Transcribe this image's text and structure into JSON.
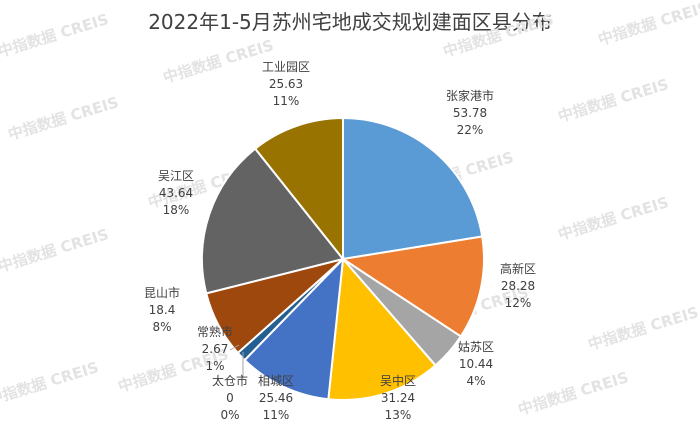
{
  "chart_data": {
    "type": "pie",
    "title": "2022年1-5月苏州宅地成交规划建面区县分布",
    "slices": [
      {
        "name": "张家港市",
        "value": 53.78,
        "pct_label": "22%",
        "color": "#5b9bd5"
      },
      {
        "name": "高新区",
        "value": 28.28,
        "pct_label": "12%",
        "color": "#ed7d31"
      },
      {
        "name": "姑苏区",
        "value": 10.44,
        "pct_label": "4%",
        "color": "#a5a5a5"
      },
      {
        "name": "吴中区",
        "value": 31.24,
        "pct_label": "13%",
        "color": "#ffc000"
      },
      {
        "name": "相城区",
        "value": 25.46,
        "pct_label": "11%",
        "color": "#4472c4"
      },
      {
        "name": "太仓市",
        "value": 0,
        "pct_label": "0%",
        "color": "#70ad47"
      },
      {
        "name": "常熟市",
        "value": 2.67,
        "pct_label": "1%",
        "color": "#255e91"
      },
      {
        "name": "昆山市",
        "value": 18.4,
        "pct_label": "8%",
        "color": "#9e480e"
      },
      {
        "name": "吴江区",
        "value": 43.64,
        "pct_label": "18%",
        "color": "#636363"
      },
      {
        "name": "工业园区",
        "value": 25.63,
        "pct_label": "11%",
        "color": "#997300"
      }
    ]
  },
  "watermark": "中指数据 CREIS"
}
